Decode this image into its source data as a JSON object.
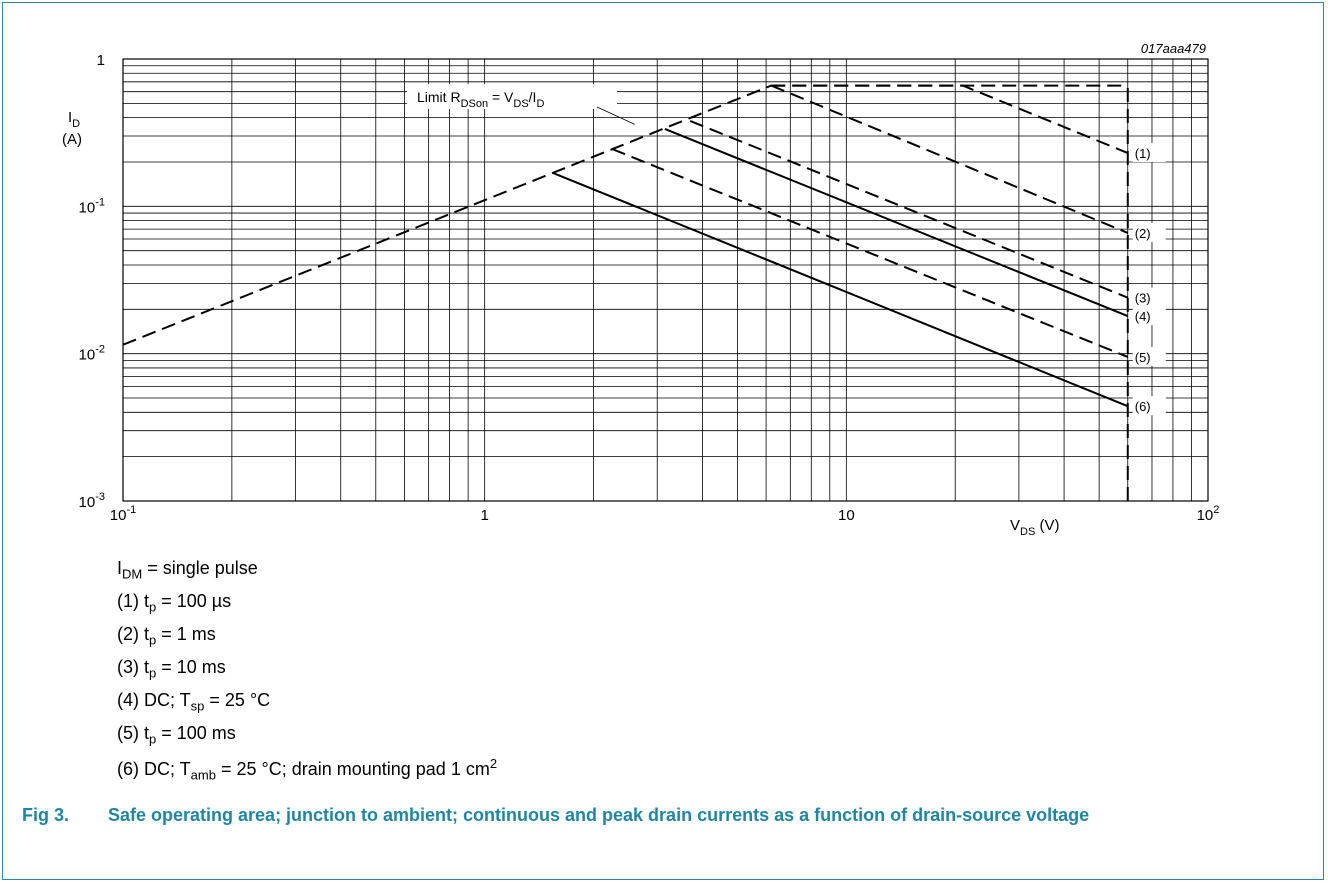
{
  "figure_id": "017aaa479",
  "chart_data": {
    "type": "line",
    "x_scale": "log",
    "y_scale": "log",
    "xlim": [
      0.1,
      100
    ],
    "ylim": [
      0.001,
      1
    ],
    "grid": true,
    "xlabel_main": "V",
    "xlabel_sub": "DS",
    "xlabel_unit": " (V)",
    "ylabel_main": "I",
    "ylabel_sub": "D",
    "ylabel_unit": "(A)",
    "x_ticks": [
      {
        "value": 0.1,
        "base": "10",
        "exp": "-1"
      },
      {
        "value": 1,
        "base": "1",
        "exp": ""
      },
      {
        "value": 10,
        "base": "10",
        "exp": ""
      },
      {
        "value": 100,
        "base": "10",
        "exp": "2"
      }
    ],
    "y_ticks": [
      {
        "value": 1,
        "base": "1",
        "exp": ""
      },
      {
        "value": 0.1,
        "base": "10",
        "exp": "-1"
      },
      {
        "value": 0.01,
        "base": "10",
        "exp": "-2"
      },
      {
        "value": 0.001,
        "base": "10",
        "exp": "-3"
      }
    ],
    "annotation": {
      "pre": "Limit R",
      "sub1": "DSon",
      "mid": " = V",
      "sub2": "DS",
      "mid2": "/I",
      "sub3": "D",
      "x": 2.6,
      "y": 0.36
    },
    "limit_line": {
      "style": "dashed",
      "x": [
        0.1,
        6.2
      ],
      "y": [
        0.0115,
        0.66
      ]
    },
    "current_limit": {
      "style": "dashed",
      "x": [
        6.2,
        60
      ],
      "y": [
        0.66,
        0.66
      ]
    },
    "voltage_limit": {
      "style": "dashed",
      "x": [
        60,
        60
      ],
      "y": [
        0.001,
        0.66
      ]
    },
    "series": [
      {
        "label": "(1)",
        "style": "dashed",
        "x": [
          6.2,
          21,
          60
        ],
        "y": [
          0.66,
          0.66,
          0.23
        ]
      },
      {
        "label": "(2)",
        "style": "dashed",
        "x": [
          6.2,
          60
        ],
        "y": [
          0.66,
          0.066
        ]
      },
      {
        "label": "(3)",
        "style": "dashed",
        "x": [
          3.7,
          60
        ],
        "y": [
          0.38,
          0.024
        ]
      },
      {
        "label": "(4)",
        "style": "solid",
        "x": [
          3.15,
          60
        ],
        "y": [
          0.335,
          0.018
        ]
      },
      {
        "label": "(5)",
        "style": "dashed",
        "x": [
          2.25,
          60
        ],
        "y": [
          0.245,
          0.0095
        ]
      },
      {
        "label": "(6)",
        "style": "solid",
        "x": [
          1.55,
          60
        ],
        "y": [
          0.168,
          0.0044
        ]
      }
    ]
  },
  "notes": [
    {
      "text_a": "I",
      "sub_a": "DM",
      "text_b": " = single pulse",
      "sup": ""
    },
    {
      "text_a": "(1) t",
      "sub_a": "p",
      "text_b": " = 100 µs",
      "sup": ""
    },
    {
      "text_a": "(2) t",
      "sub_a": "p",
      "text_b": " = 1 ms",
      "sup": ""
    },
    {
      "text_a": "(3) t",
      "sub_a": "p",
      "text_b": " = 10 ms",
      "sup": ""
    },
    {
      "text_a": "(4) DC; T",
      "sub_a": "sp",
      "text_b": " = 25 °C",
      "sup": ""
    },
    {
      "text_a": "(5) t",
      "sub_a": "p",
      "text_b": " = 100 ms",
      "sup": ""
    },
    {
      "text_a": "(6) DC; T",
      "sub_a": "amb",
      "text_b": " = 25 °C; drain mounting pad 1 cm",
      "sup": "2"
    }
  ],
  "caption": {
    "number": "Fig 3.",
    "text": "Safe operating area; junction to ambient; continuous and peak drain currents as a function of drain-source voltage"
  },
  "colors": {
    "frame": "#2a8aa5",
    "caption": "#1f86a1",
    "grid": "#000000"
  }
}
